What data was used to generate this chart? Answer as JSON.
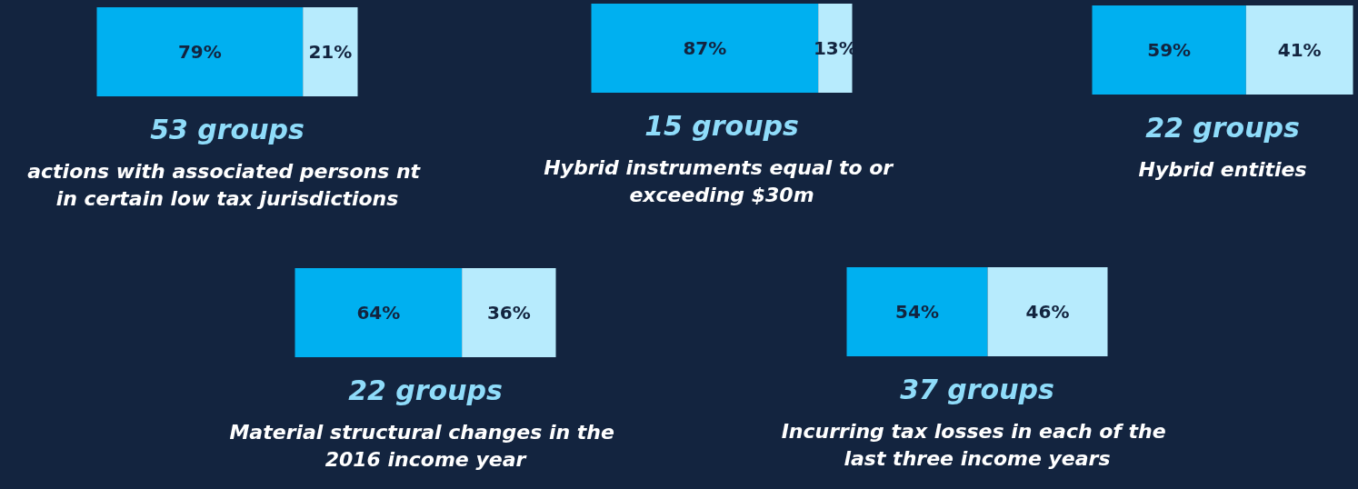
{
  "chart_data": [
    {
      "type": "bar",
      "orientation": "horizontal",
      "stacked": true,
      "tick_labels": false,
      "title": "53 groups",
      "subtitle": "actions with associated persons nt in certain low tax jurisdictions",
      "categories": [
        null
      ],
      "series": [
        {
          "color": "#00b0f0",
          "values": [
            79
          ],
          "value_labels": [
            "79%"
          ]
        },
        {
          "color": "#b7ebfd",
          "values": [
            21
          ],
          "value_labels": [
            "21%"
          ]
        }
      ]
    },
    {
      "type": "bar",
      "orientation": "horizontal",
      "stacked": true,
      "tick_labels": false,
      "title": "15 groups",
      "subtitle": "Hybrid instruments equal to or exceeding $30m",
      "categories": [
        null
      ],
      "series": [
        {
          "color": "#00b0f0",
          "values": [
            87
          ],
          "value_labels": [
            "87%"
          ]
        },
        {
          "color": "#b7ebfd",
          "values": [
            13
          ],
          "value_labels": [
            "13%"
          ]
        }
      ]
    },
    {
      "type": "bar",
      "orientation": "horizontal",
      "stacked": true,
      "tick_labels": false,
      "title": "22 groups",
      "subtitle": "Hybrid entities",
      "categories": [
        null
      ],
      "series": [
        {
          "color": "#00b0f0",
          "values": [
            59
          ],
          "value_labels": [
            "59%"
          ]
        },
        {
          "color": "#b7ebfd",
          "values": [
            41
          ],
          "value_labels": [
            "41%"
          ]
        }
      ]
    },
    {
      "type": "bar",
      "orientation": "horizontal",
      "stacked": true,
      "tick_labels": false,
      "title": "22 groups",
      "subtitle": "Material structural changes in the 2016 income year",
      "categories": [
        null
      ],
      "series": [
        {
          "color": "#00b0f0",
          "values": [
            64
          ],
          "value_labels": [
            "64%"
          ]
        },
        {
          "color": "#b7ebfd",
          "values": [
            36
          ],
          "value_labels": [
            "36%"
          ]
        }
      ]
    },
    {
      "type": "bar",
      "orientation": "horizontal",
      "stacked": true,
      "tick_labels": false,
      "title": "37 groups",
      "subtitle": "Incurring tax losses in each of the last three income years",
      "categories": [
        null
      ],
      "series": [
        {
          "color": "#00b0f0",
          "values": [
            54
          ],
          "value_labels": [
            "54%"
          ]
        },
        {
          "color": "#b7ebfd",
          "values": [
            46
          ],
          "value_labels": [
            "46%"
          ]
        }
      ]
    }
  ]
}
